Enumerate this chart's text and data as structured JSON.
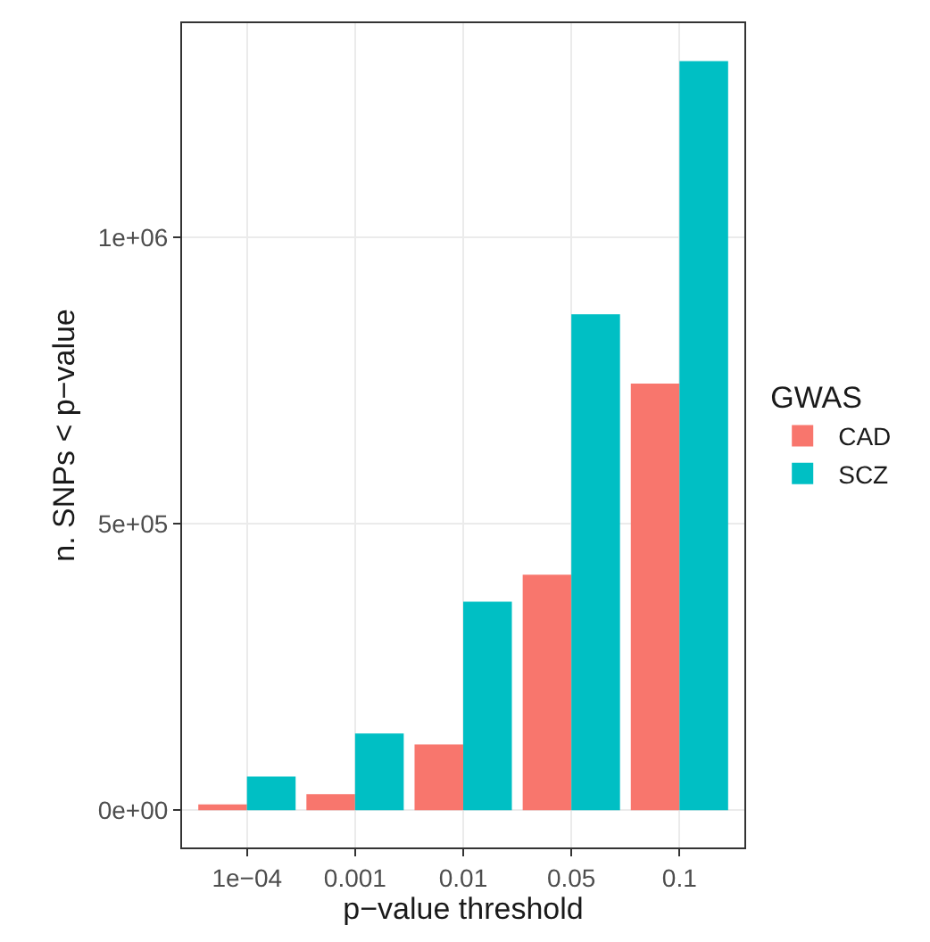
{
  "chart_data": {
    "type": "bar",
    "xlabel": "p−value threshold",
    "ylabel": "n. SNPs < p−value",
    "legend_title": "GWAS",
    "categories": [
      "1e−04",
      "0.001",
      "0.01",
      "0.05",
      "0.1"
    ],
    "series": [
      {
        "name": "CAD",
        "color": "#f8766d",
        "values": [
          10000,
          28000,
          115000,
          411000,
          745000
        ]
      },
      {
        "name": "SCZ",
        "color": "#00bfc4",
        "values": [
          59000,
          134000,
          364000,
          866000,
          1308000
        ]
      }
    ],
    "ylim": [
      -65000,
      1374000
    ],
    "yticks": [
      {
        "value": 0,
        "label": "0e+00"
      },
      {
        "value": 500000,
        "label": "5e+05"
      },
      {
        "value": 1000000,
        "label": "1e+06"
      }
    ],
    "grid": true,
    "legend": "right"
  }
}
